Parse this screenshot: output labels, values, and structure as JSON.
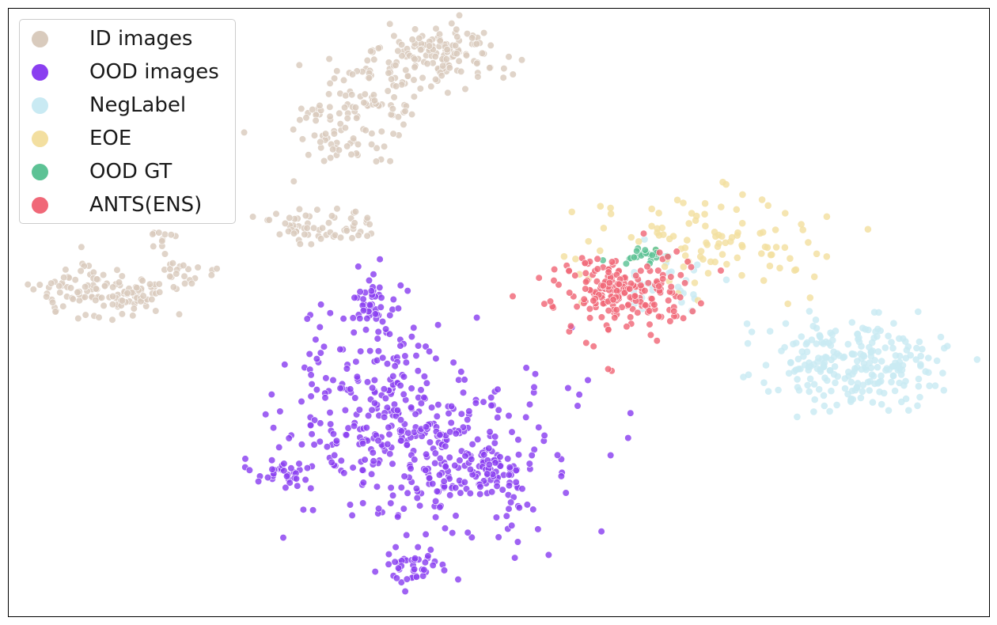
{
  "chart_data": {
    "type": "scatter",
    "title": "",
    "xlabel": "",
    "ylabel": "",
    "xlim": [
      0,
      100
    ],
    "ylim": [
      0,
      100
    ],
    "axis_ticks": "hidden",
    "grid": false,
    "legend_position": "top-left",
    "series": [
      {
        "name": "ID images",
        "color": "#d9cbbd",
        "clusters": [
          {
            "center": [
              44,
              92
            ],
            "spread": [
              3.2,
              2.8
            ],
            "count": 140
          },
          {
            "center": [
              37,
              85
            ],
            "spread": [
              2.5,
              3.0
            ],
            "count": 80
          },
          {
            "center": [
              34,
              77
            ],
            "spread": [
              2.5,
              1.8
            ],
            "count": 40
          },
          {
            "center": [
              30,
              64
            ],
            "spread": [
              1.6,
              1.5
            ],
            "count": 45
          },
          {
            "center": [
              35,
              64
            ],
            "spread": [
              1.0,
              1.2
            ],
            "count": 20
          },
          {
            "center": [
              31,
              83
            ],
            "spread": [
              0.8,
              0.7
            ],
            "count": 10
          },
          {
            "center": [
              8.5,
              53.5
            ],
            "spread": [
              3.0,
              2.2
            ],
            "count": 95
          },
          {
            "center": [
              14,
              53
            ],
            "spread": [
              2.0,
              1.4
            ],
            "count": 35
          },
          {
            "center": [
              18,
              56.5
            ],
            "spread": [
              1.6,
              1.0
            ],
            "count": 20
          },
          {
            "center": [
              15.5,
              62.5
            ],
            "spread": [
              0.8,
              1.0
            ],
            "count": 10
          }
        ]
      },
      {
        "name": "OOD images",
        "color": "#8a3ff0",
        "clusters": [
          {
            "center": [
              43,
              27
            ],
            "spread": [
              6.5,
              7.0
            ],
            "count": 330
          },
          {
            "center": [
              37.5,
              38
            ],
            "spread": [
              4.0,
              7.5
            ],
            "count": 140
          },
          {
            "center": [
              37.5,
              52
            ],
            "spread": [
              1.3,
              2.4
            ],
            "count": 45
          },
          {
            "center": [
              28,
              24
            ],
            "spread": [
              1.6,
              1.5
            ],
            "count": 30
          },
          {
            "center": [
              49.5,
              23.5
            ],
            "spread": [
              1.2,
              2.2
            ],
            "count": 40
          },
          {
            "center": [
              41,
              8
            ],
            "spread": [
              2.0,
              1.5
            ],
            "count": 40
          }
        ]
      },
      {
        "name": "NegLabel",
        "color": "#c9eaf3",
        "clusters": [
          {
            "center": [
              86,
              42
            ],
            "spread": [
              4.5,
              3.8
            ],
            "count": 240
          },
          {
            "center": [
              67,
              55
            ],
            "spread": [
              3.0,
              3.0
            ],
            "count": 30
          }
        ]
      },
      {
        "name": "EOE",
        "color": "#f3dfa0",
        "clusters": [
          {
            "center": [
              71.5,
              61
            ],
            "spread": [
              6.5,
              5.0
            ],
            "count": 110
          }
        ]
      },
      {
        "name": "OOD GT",
        "color": "#5dc295",
        "clusters": [
          {
            "center": [
              65,
              59.5
            ],
            "spread": [
              1.5,
              0.8
            ],
            "count": 22
          }
        ]
      },
      {
        "name": "ANTS(ENS)",
        "color": "#f06878",
        "clusters": [
          {
            "center": [
              62.5,
              53.5
            ],
            "spread": [
              3.6,
              3.2
            ],
            "count": 210
          }
        ]
      }
    ],
    "legend": [
      "ID images",
      "OOD images",
      "NegLabel",
      "EOE",
      "OOD GT",
      "ANTS(ENS)"
    ]
  }
}
